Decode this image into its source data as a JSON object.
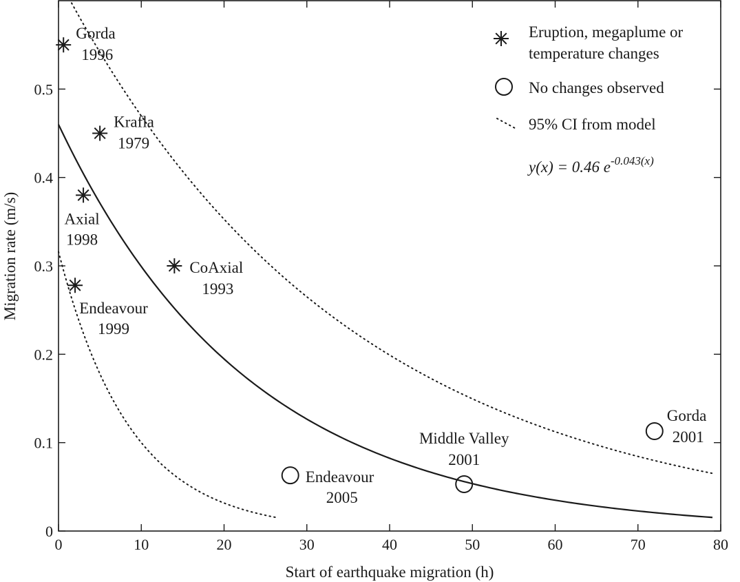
{
  "chart_data": {
    "type": "scatter",
    "xlabel": "Start of earthquake migration (h)",
    "ylabel": "Migration rate (m/s)",
    "xlim": [
      0,
      80
    ],
    "ylim": [
      0,
      0.6
    ],
    "x_ticks": [
      "0",
      "10",
      "20",
      "30",
      "40",
      "50",
      "60",
      "70",
      "80"
    ],
    "y_ticks": [
      "0",
      "0.1",
      "0.2",
      "0.3",
      "0.4",
      "0.5"
    ],
    "grid": false,
    "legend_position": "top-right",
    "legend": {
      "eruption": [
        "Eruption, megaplume or",
        "temperature changes"
      ],
      "no_change": "No changes observed",
      "ci": "95% CI from model",
      "equation": {
        "lhs": "y(x) = 0.46 e",
        "exponent": "-0.043(x)"
      }
    },
    "series": [
      {
        "name": "Eruption, megaplume or temperature changes",
        "marker": "asterisk",
        "points": [
          {
            "x": 0.6,
            "y": 0.55,
            "label": [
              "Gorda",
              "1996"
            ]
          },
          {
            "x": 5,
            "y": 0.45,
            "label": [
              "Krafla",
              "1979"
            ]
          },
          {
            "x": 3,
            "y": 0.38,
            "label": [
              "Axial",
              "1998"
            ]
          },
          {
            "x": 14,
            "y": 0.3,
            "label": [
              "CoAxial",
              "1993"
            ]
          },
          {
            "x": 2,
            "y": 0.278,
            "label": [
              "Endeavour",
              "1999"
            ]
          }
        ]
      },
      {
        "name": "No changes observed",
        "marker": "circle",
        "points": [
          {
            "x": 28,
            "y": 0.063,
            "label": [
              "Endeavour",
              "2005"
            ]
          },
          {
            "x": 49,
            "y": 0.053,
            "label": [
              "Middle Valley",
              "2001"
            ]
          },
          {
            "x": 72,
            "y": 0.113,
            "label": [
              "Gorda",
              "2001"
            ]
          }
        ]
      }
    ],
    "fit": {
      "amplitude": 0.46,
      "rate": 0.043,
      "x_range": [
        0,
        79
      ]
    },
    "ci_upper": {
      "amplitude": 0.625,
      "rate": 0.0286,
      "x_range": [
        0,
        79
      ]
    },
    "ci_lower": {
      "amplitude": 0.316,
      "rate": 0.115,
      "x_range": [
        0,
        26.5
      ]
    }
  }
}
